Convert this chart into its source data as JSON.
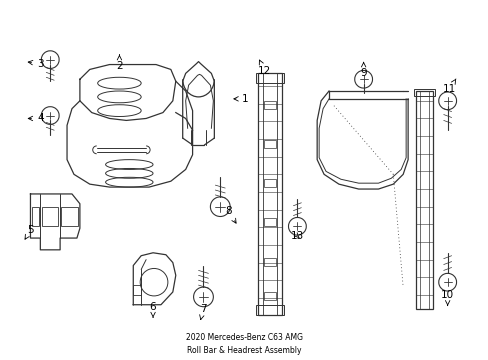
{
  "title": "2020 Mercedes-Benz C63 AMG\nRoll Bar & Headrest Assembly",
  "bg_color": "#ffffff",
  "line_color": "#333333",
  "label_color": "#000000",
  "fig_w": 4.89,
  "fig_h": 3.6,
  "dpi": 100
}
